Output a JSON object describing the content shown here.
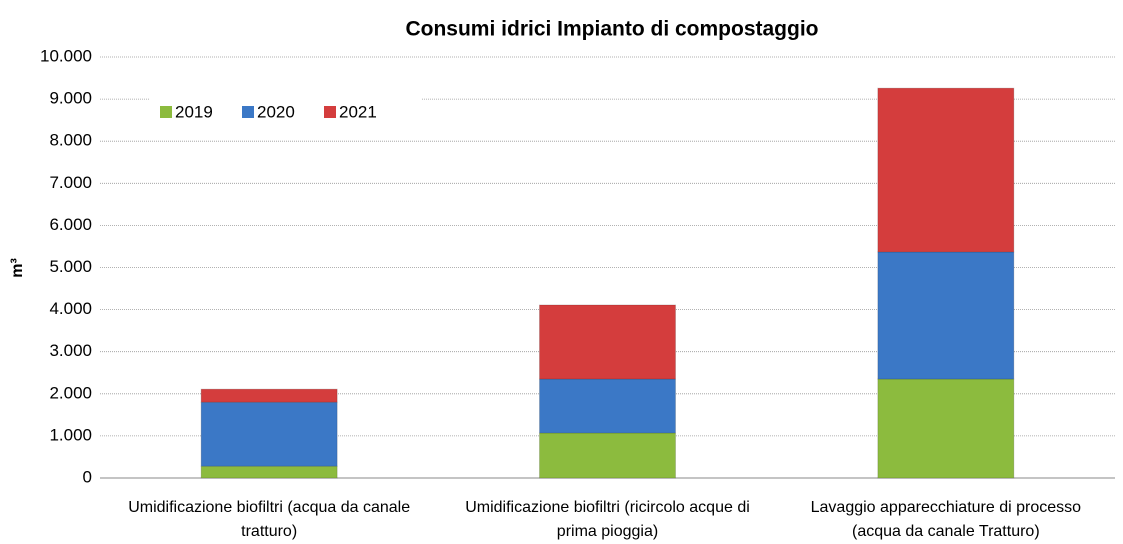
{
  "chart_data": {
    "type": "bar",
    "stacked": true,
    "title": "Consumi idrici Impianto di compostaggio",
    "y_label": "m³",
    "categories": [
      "Umidificazione biofiltri (acqua da canale tratturo)",
      "Umidificazione biofiltri (ricircolo acque di prima pioggia)",
      "Lavaggio apparecchiature di processo (acqua da canale Tratturo)"
    ],
    "series": [
      {
        "name": "2019",
        "color": "#8cbb3e",
        "values": [
          280,
          1070,
          2350
        ]
      },
      {
        "name": "2020",
        "color": "#3b78c6",
        "values": [
          1520,
          1280,
          3020
        ]
      },
      {
        "name": "2021",
        "color": "#d43d3d",
        "values": [
          310,
          1760,
          3890
        ]
      }
    ],
    "ylim": [
      0,
      10000
    ],
    "yticks": [
      0,
      {
        "value": 1000,
        "label": "1.000"
      },
      {
        "value": 2000,
        "label": "2.000"
      },
      {
        "value": 3000,
        "label": "3.000"
      },
      {
        "value": 4000,
        "label": "4.000"
      },
      {
        "value": 5000,
        "label": "5.000"
      },
      {
        "value": 6000,
        "label": "6.000"
      },
      {
        "value": 7000,
        "label": "7.000"
      },
      {
        "value": 8000,
        "label": "8.000"
      },
      {
        "value": 9000,
        "label": "9.000"
      },
      {
        "value": 10000,
        "label": "10.000"
      }
    ],
    "grid": true,
    "legend": "top-left"
  }
}
